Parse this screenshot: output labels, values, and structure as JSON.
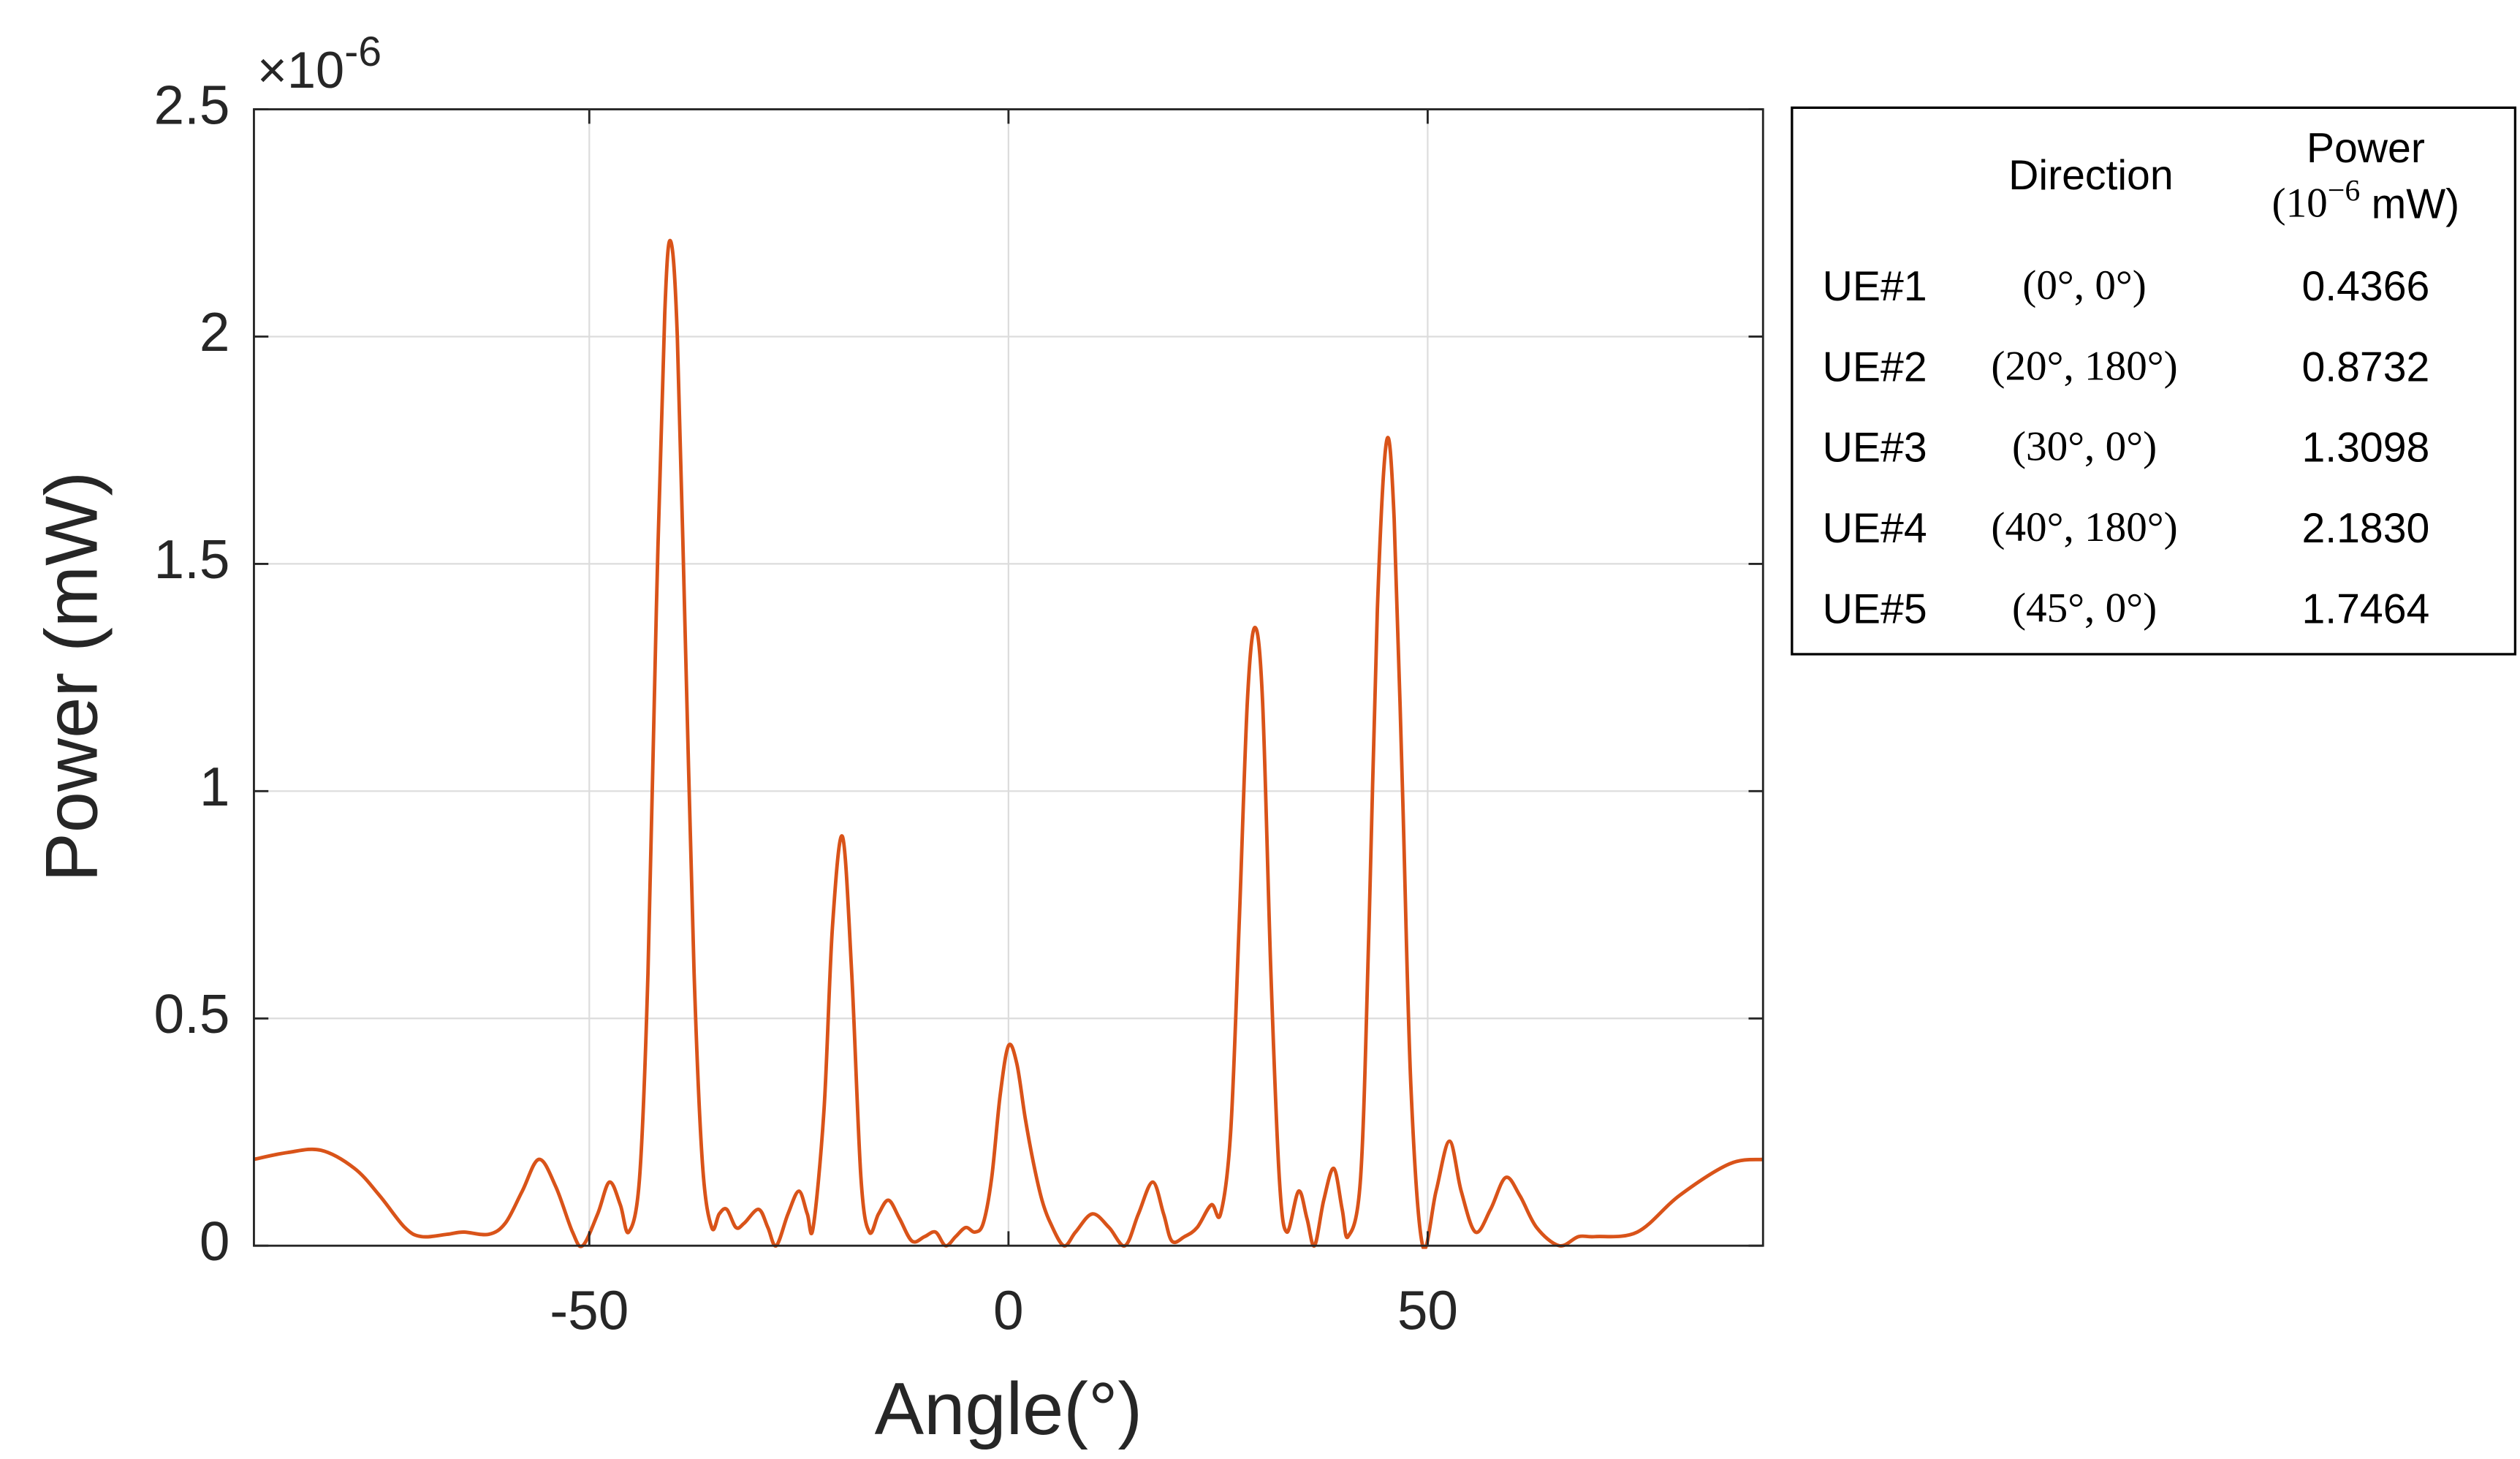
{
  "chart_data": {
    "type": "line",
    "xlabel": "Angle(°)",
    "ylabel": "Power (mW)",
    "y_multiplier": {
      "base": "×10",
      "exponent": "-6"
    },
    "xlim": [
      -90,
      90
    ],
    "ylim": [
      0,
      2.5
    ],
    "xticks": [
      -50,
      0,
      50
    ],
    "yticks": [
      0,
      0.5,
      1,
      1.5,
      2,
      2.5
    ],
    "grid": true,
    "x": [
      -90,
      -86,
      -82,
      -78,
      -75,
      -72,
      -70,
      -67,
      -65,
      -62,
      -60,
      -58,
      -56,
      -54,
      -52,
      -50.8,
      -49,
      -47.6,
      -46.3,
      -45.3,
      -44,
      -43,
      -42,
      -41,
      -40.3,
      -39.5,
      -38.5,
      -37.5,
      -36.5,
      -35.4,
      -34.5,
      -33.6,
      -32.5,
      -31.5,
      -29.8,
      -28.7,
      -27.7,
      -26.3,
      -25,
      -24,
      -23.3,
      -22,
      -21,
      -19.8,
      -18.7,
      -17.6,
      -16.6,
      -15.5,
      -14.3,
      -13,
      -11.5,
      -10,
      -8.7,
      -7.5,
      -6.3,
      -5.1,
      -4,
      -3,
      -2,
      -1,
      0,
      1,
      2,
      3,
      4,
      5,
      6.6,
      8,
      10,
      12,
      13.9,
      15.5,
      17.2,
      18.5,
      19.5,
      21,
      22.5,
      24.2,
      25.3,
      26.5,
      27.5,
      28.5,
      29.4,
      30.3,
      31.3,
      32.3,
      33.2,
      34.6,
      35.6,
      36.5,
      37.6,
      38.8,
      39.8,
      40.5,
      42,
      43,
      44,
      45.1,
      46,
      47,
      48,
      49.4,
      51,
      52.6,
      54,
      55.7,
      57.5,
      59.3,
      61,
      63,
      65.7,
      68,
      70,
      75,
      80,
      86,
      90
    ],
    "series": [
      {
        "color": "#d95319",
        "values": [
          0.19,
          0.205,
          0.21,
          0.17,
          0.11,
          0.04,
          0.02,
          0.025,
          0.03,
          0.025,
          0.05,
          0.12,
          0.19,
          0.13,
          0.03,
          0,
          0.07,
          0.14,
          0.09,
          0.03,
          0.15,
          0.6,
          1.4,
          2.05,
          2.21,
          2.0,
          1.3,
          0.6,
          0.18,
          0.04,
          0.07,
          0.08,
          0.04,
          0.05,
          0.08,
          0.04,
          0,
          0.07,
          0.12,
          0.07,
          0.04,
          0.3,
          0.7,
          0.9,
          0.6,
          0.15,
          0.03,
          0.07,
          0.1,
          0.06,
          0.01,
          0.02,
          0.03,
          0,
          0.02,
          0.04,
          0.03,
          0.05,
          0.15,
          0.33,
          0.44,
          0.4,
          0.28,
          0.18,
          0.1,
          0.05,
          0,
          0.03,
          0.07,
          0.04,
          0,
          0.07,
          0.14,
          0.07,
          0.01,
          0.02,
          0.04,
          0.09,
          0.07,
          0.25,
          0.7,
          1.2,
          1.36,
          1.2,
          0.6,
          0.15,
          0.03,
          0.12,
          0.06,
          0,
          0.1,
          0.17,
          0.08,
          0.02,
          0.15,
          0.7,
          1.4,
          1.77,
          1.6,
          1.0,
          0.35,
          0,
          0.12,
          0.23,
          0.12,
          0.03,
          0.08,
          0.15,
          0.11,
          0.04,
          0,
          0.02,
          0.02,
          0.03,
          0.11,
          0.18,
          0.19
        ]
      }
    ]
  },
  "table": {
    "direction_header": "Direction",
    "power_header": "Power",
    "power_unit": {
      "open": "(10",
      "exponent": "−6",
      "close": "mW)"
    },
    "rows": [
      [
        "UE#1",
        "(0°, 0°)",
        "0.4366"
      ],
      [
        "UE#2",
        "(20°, 180°)",
        "0.8732"
      ],
      [
        "UE#3",
        "(30°, 0°)",
        "1.3098"
      ],
      [
        "UE#4",
        "(40°, 180°)",
        "2.1830"
      ],
      [
        "UE#5",
        "(45°, 0°)",
        "1.7464"
      ]
    ]
  }
}
